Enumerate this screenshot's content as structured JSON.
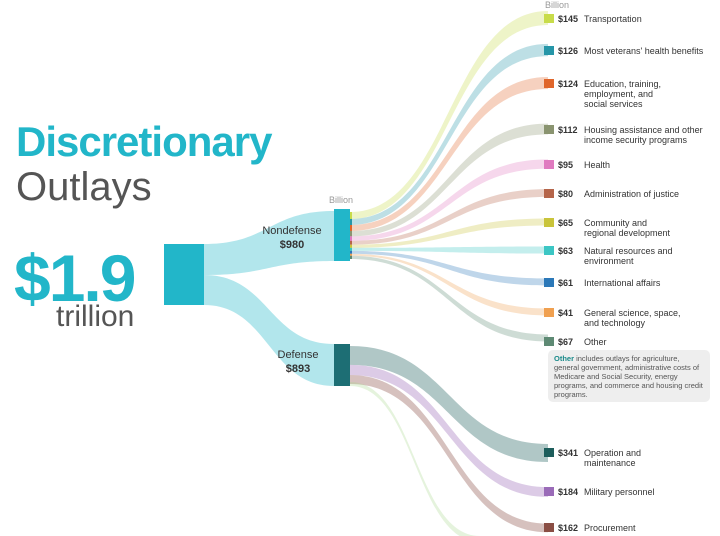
{
  "title_line1": "Discretionary",
  "title_line2": "Outlays",
  "total": "$1.9",
  "total_unit": "trillion",
  "unit_label": "Billion",
  "colors": {
    "accent": "#22b6c9",
    "defense": "#1d6e74"
  },
  "nodes": {
    "nondefense": {
      "label": "Nondefense",
      "value": "$980"
    },
    "defense": {
      "label": "Defense",
      "value": "$893"
    }
  },
  "nondefense_items": [
    {
      "amount": "$145",
      "label": "Transportation",
      "value": 145,
      "color": "#c8dc4a"
    },
    {
      "amount": "$126",
      "label": "Most veterans' health benefits",
      "value": 126,
      "color": "#2696a8"
    },
    {
      "amount": "$124",
      "label": "Education, training, employment, and social services",
      "value": 124,
      "color": "#e0662b"
    },
    {
      "amount": "$112",
      "label": "Housing assistance and other income security programs",
      "value": 112,
      "color": "#8a9470"
    },
    {
      "amount": "$95",
      "label": "Health",
      "value": 95,
      "color": "#e07bc0"
    },
    {
      "amount": "$80",
      "label": "Administration of justice",
      "value": 80,
      "color": "#b5654a"
    },
    {
      "amount": "$65",
      "label": "Community and regional development",
      "value": 65,
      "color": "#c9c43a"
    },
    {
      "amount": "$63",
      "label": "Natural resources and environment",
      "value": 63,
      "color": "#3cc6c4"
    },
    {
      "amount": "$61",
      "label": "International affairs",
      "value": 61,
      "color": "#2b78b8"
    },
    {
      "amount": "$41",
      "label": "General science, space, and technology",
      "value": 41,
      "color": "#f0a050"
    },
    {
      "amount": "$67",
      "label": "Other",
      "value": 67,
      "color": "#5e8a74"
    }
  ],
  "other_note": {
    "lead": "Other",
    "text": " includes outlays for agriculture, general government, administrative costs of Medicare and Social Security, energy programs, and commerce and housing credit programs."
  },
  "defense_items": [
    {
      "amount": "$341",
      "label": "Operation and maintenance",
      "value": 341,
      "color": "#1d5e5c"
    },
    {
      "amount": "$184",
      "label": "Military personnel",
      "value": 184,
      "color": "#9a6bb8"
    },
    {
      "amount": "$162",
      "label": "Procurement",
      "value": 162,
      "color": "#8a4e44"
    }
  ]
}
